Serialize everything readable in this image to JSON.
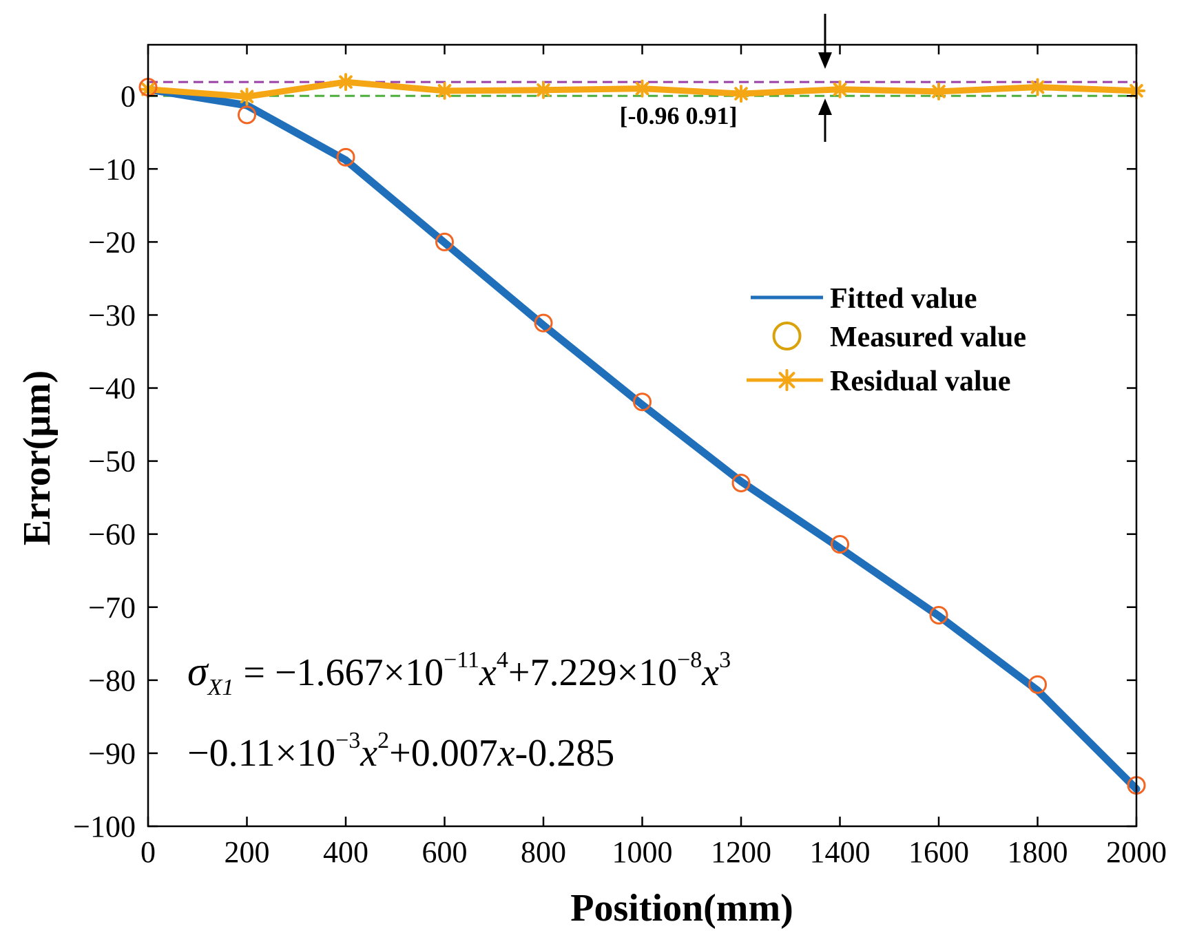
{
  "chart_data": {
    "type": "line",
    "xlabel": "Position(mm)",
    "ylabel": "Error(μm)",
    "xlim": [
      0,
      2000
    ],
    "ylim": [
      -100,
      7
    ],
    "xticks": [
      0,
      200,
      400,
      600,
      800,
      1000,
      1200,
      1400,
      1600,
      1800,
      2000
    ],
    "yticks": [
      0,
      -10,
      -20,
      -30,
      -40,
      -50,
      -60,
      -70,
      -80,
      -90,
      -100
    ],
    "xtick_labels": [
      "0",
      "200",
      "400",
      "600",
      "800",
      "1000",
      "1200",
      "1400",
      "1600",
      "1800",
      "2000"
    ],
    "ytick_labels": [
      "0",
      "−10",
      "−20",
      "−30",
      "−40",
      "−50",
      "−60",
      "−70",
      "−80",
      "−90",
      "−100"
    ],
    "grid": false,
    "legend_position": "right-middle",
    "series": [
      {
        "name": "Fitted value",
        "kind": "line",
        "color": "#1f6fba",
        "x": [
          0,
          200,
          400,
          600,
          800,
          1000,
          1200,
          1400,
          1600,
          1800,
          2000
        ],
        "values": [
          0.9,
          -1.3,
          -8.8,
          -20.1,
          -31.4,
          -42.3,
          -52.8,
          -61.9,
          -71.2,
          -81.4,
          -94.9
        ]
      },
      {
        "name": "Measured value",
        "kind": "marker",
        "marker": "circle",
        "color": "#f26522",
        "legend_color": "#d9a20a",
        "x": [
          0,
          200,
          400,
          600,
          800,
          1000,
          1200,
          1400,
          1600,
          1800,
          2000
        ],
        "values": [
          1.2,
          -2.6,
          -8.4,
          -20.0,
          -31.1,
          -41.9,
          -53.0,
          -61.4,
          -71.1,
          -80.6,
          -94.4
        ]
      },
      {
        "name": "Residual value",
        "kind": "line-marker",
        "marker": "asterisk",
        "color": "#f5a614",
        "x": [
          0,
          200,
          400,
          600,
          800,
          1000,
          1200,
          1400,
          1600,
          1800,
          2000
        ],
        "values": [
          0.9,
          -0.1,
          1.9,
          0.7,
          0.8,
          1.0,
          0.3,
          0.9,
          0.6,
          1.2,
          0.7
        ]
      }
    ],
    "bounds": [
      {
        "name": "upper-bound",
        "value": 1.9,
        "color": "#9b3fa8",
        "style": "dashed"
      },
      {
        "name": "lower-bound",
        "value": 0.0,
        "color": "#4caf3a",
        "style": "dashed"
      }
    ],
    "annotations": {
      "range_label": "[-0.96 0.91]",
      "range_arrow_x": 1370,
      "equation_line1": {
        "sigma": "σ",
        "sub": "X1",
        "part1": " = −1.667×10",
        "exp1": "−11",
        "var1": "x",
        "pow1": "4",
        "part2": "+7.229×10",
        "exp2": "−8",
        "var2": "x",
        "pow2": "3"
      },
      "equation_line2": {
        "part1": "−0.11×10",
        "exp1": "−3",
        "var1": "x",
        "pow1": "2",
        "part2": "+0.007",
        "var2": "x",
        "part3": "-0.285"
      }
    }
  }
}
